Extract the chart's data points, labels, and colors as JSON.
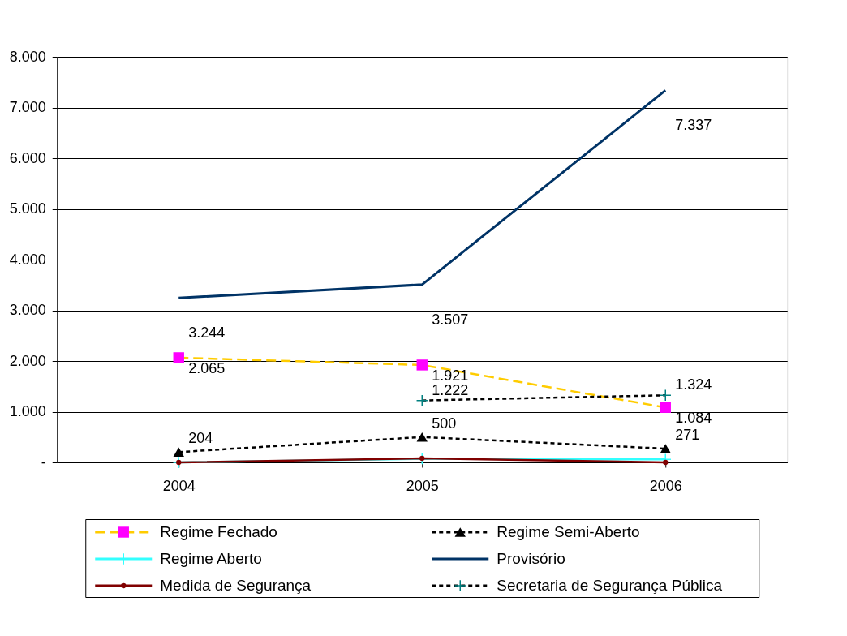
{
  "chart_data": {
    "type": "line",
    "categories": [
      "2004",
      "2005",
      "2006"
    ],
    "ylim": [
      0,
      8000
    ],
    "yticks": [
      {
        "value": 0,
        "label": "-"
      },
      {
        "value": 1000,
        "label": "1.000"
      },
      {
        "value": 2000,
        "label": "2.000"
      },
      {
        "value": 3000,
        "label": "3.000"
      },
      {
        "value": 4000,
        "label": "4.000"
      },
      {
        "value": 5000,
        "label": "5.000"
      },
      {
        "value": 6000,
        "label": "6.000"
      },
      {
        "value": 7000,
        "label": "7.000"
      },
      {
        "value": 8000,
        "label": "8.000"
      }
    ],
    "grid": "y",
    "legend": "bottom",
    "series": [
      {
        "name": "Regime Fechado",
        "color": "#ffcc00",
        "colors": [
          "#ff00ff",
          "#ff00ff",
          "#ff00ff"
        ],
        "marker": "square",
        "line_style": "dashed",
        "values": [
          2065,
          1921,
          1084
        ],
        "value_labels": [
          "2.065",
          "1.921",
          "1.084"
        ]
      },
      {
        "name": "Regime Semi-Aberto",
        "color": "#000000",
        "marker": "triangle",
        "line_style": "dotted",
        "values": [
          204,
          500,
          271
        ],
        "value_labels": [
          "204",
          "500",
          "271"
        ]
      },
      {
        "name": "Regime Aberto",
        "color": "#33ffff",
        "marker": "cross",
        "line_style": "solid",
        "values": [
          0,
          70,
          60
        ]
      },
      {
        "name": "Provisório",
        "color": "#003366",
        "marker": "none",
        "line_style": "solid",
        "values": [
          3244,
          3507,
          7337
        ],
        "value_labels": [
          "3.244",
          "3.507",
          "7.337"
        ]
      },
      {
        "name": "Medida de Segurança",
        "color": "#800000",
        "marker": "circle",
        "line_style": "solid",
        "values": [
          0,
          80,
          0
        ]
      },
      {
        "name": "Secretaria de Segurança Pública",
        "color": "#000000",
        "colors": [
          null,
          "#008080",
          "#008080"
        ],
        "marker": "cross",
        "line_style": "dotted",
        "values": [
          null,
          1222,
          1324
        ],
        "value_labels": [
          null,
          "1.222",
          "1.324"
        ]
      }
    ]
  }
}
